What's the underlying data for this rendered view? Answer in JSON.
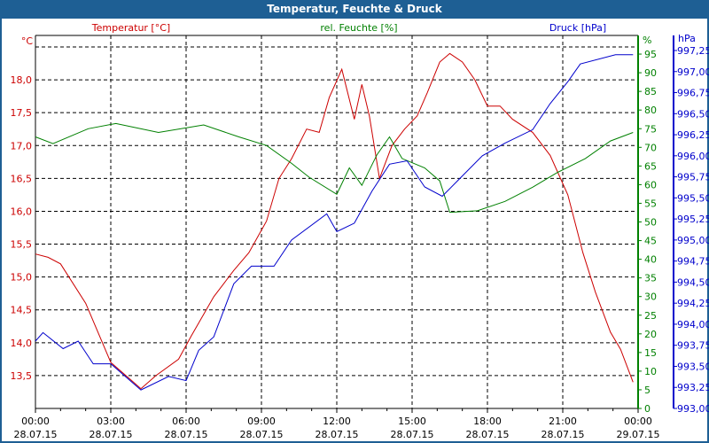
{
  "title": "Temperatur, Feuchte & Druck",
  "chart_data": {
    "type": "line",
    "title": "Temperatur, Feuchte & Druck",
    "x_ticks": [
      {
        "h": 0,
        "time": "00:00",
        "date": "28.07.15"
      },
      {
        "h": 3,
        "time": "03:00",
        "date": "28.07.15"
      },
      {
        "h": 6,
        "time": "06:00",
        "date": "28.07.15"
      },
      {
        "h": 9,
        "time": "09:00",
        "date": "28.07.15"
      },
      {
        "h": 12,
        "time": "12:00",
        "date": "28.07.15"
      },
      {
        "h": 15,
        "time": "15:00",
        "date": "28.07.15"
      },
      {
        "h": 18,
        "time": "18:00",
        "date": "28.07.15"
      },
      {
        "h": 21,
        "time": "21:00",
        "date": "28.07.15"
      },
      {
        "h": 24,
        "time": "00:00",
        "date": "29.07.15"
      }
    ],
    "xlim": [
      0,
      24
    ],
    "axes": {
      "temp": {
        "label": "Temperatur [°C]",
        "unit": "°C",
        "color": "#cc0000",
        "ylim": [
          13.0,
          18.675
        ],
        "ticks": [
          "13,5",
          "14,0",
          "14,5",
          "15,0",
          "15,5",
          "16,0",
          "16,5",
          "17,0",
          "17,5",
          "18,0"
        ],
        "tick_values": [
          13.5,
          14,
          14.5,
          15,
          15.5,
          16,
          16.5,
          17,
          17.5,
          18
        ],
        "grid": [
          13.5,
          14,
          14.5,
          15,
          15.5,
          16,
          16.5,
          17,
          17.5,
          18,
          18.5
        ]
      },
      "hum": {
        "label": "rel. Feuchte [%]",
        "unit": "%",
        "color": "#008000",
        "ylim": [
          0,
          100
        ],
        "ticks": [
          "0",
          "5",
          "10",
          "15",
          "20",
          "25",
          "30",
          "35",
          "40",
          "45",
          "50",
          "55",
          "60",
          "65",
          "70",
          "75",
          "80",
          "85",
          "90",
          "95"
        ],
        "tick_values": [
          0,
          5,
          10,
          15,
          20,
          25,
          30,
          35,
          40,
          45,
          50,
          55,
          60,
          65,
          70,
          75,
          80,
          85,
          90,
          95
        ]
      },
      "press": {
        "label": "Druck [hPa]",
        "unit": "hPa",
        "color": "#0000cc",
        "ylim": [
          993.0,
          997.25
        ],
        "ticks": [
          "993,00",
          "993,25",
          "993,50",
          "993,75",
          "994,00",
          "994,25",
          "994,50",
          "994,75",
          "995,00",
          "995,25",
          "995,50",
          "995,75",
          "996,00",
          "996,25",
          "996,50",
          "996,75",
          "997,00",
          "997,25"
        ],
        "tick_values": [
          993,
          993.25,
          993.5,
          993.75,
          994,
          994.25,
          994.5,
          994.75,
          995,
          995.25,
          995.5,
          995.75,
          996,
          996.25,
          996.5,
          996.75,
          997,
          997.25
        ]
      }
    },
    "series": [
      {
        "name": "Temperatur",
        "axis": "temp",
        "color": "#cc0000",
        "x": [
          0,
          0.5,
          1,
          2,
          3,
          3.9,
          4.2,
          4.8,
          5.7,
          6.2,
          7.1,
          7.9,
          8.5,
          9.2,
          9.7,
          10.2,
          10.8,
          11.3,
          11.7,
          12.2,
          12.7,
          13,
          13.3,
          13.7,
          14.2,
          14.7,
          15.2,
          15.6,
          16.1,
          16.5,
          17,
          17.5,
          18,
          18.5,
          19,
          19.8,
          20.5,
          21.2,
          21.8,
          22.3,
          22.9,
          23.3,
          23.8
        ],
        "values": [
          15.35,
          15.3,
          15.2,
          14.6,
          13.7,
          13.4,
          13.3,
          13.5,
          13.75,
          14.1,
          14.7,
          15.1,
          15.37,
          15.85,
          16.5,
          16.8,
          17.25,
          17.2,
          17.73,
          18.16,
          17.4,
          17.93,
          17.45,
          16.5,
          17.0,
          17.25,
          17.45,
          17.8,
          18.27,
          18.4,
          18.27,
          18.0,
          17.6,
          17.6,
          17.4,
          17.2,
          16.85,
          16.25,
          15.37,
          14.77,
          14.16,
          13.9,
          13.4
        ]
      },
      {
        "name": "rel. Feuchte",
        "axis": "hum",
        "color": "#008000",
        "x": [
          0,
          0.7,
          2.1,
          3.2,
          4.9,
          6.7,
          8.1,
          9.2,
          10.2,
          10.9,
          12,
          12.5,
          13,
          13.6,
          14.1,
          14.6,
          15.5,
          16.1,
          16.5,
          17.6,
          18.7,
          19.8,
          20.8,
          21.9,
          22.9,
          23.8
        ],
        "values": [
          72.8,
          71,
          75,
          76.4,
          74,
          76,
          72.8,
          70.5,
          65.7,
          62,
          57.4,
          64.5,
          59.8,
          68,
          72.8,
          67,
          64.5,
          61,
          52.6,
          53,
          55.5,
          59.3,
          63.3,
          67,
          71.7,
          74
        ]
      },
      {
        "name": "Druck",
        "axis": "press",
        "color": "#0000cc",
        "x": [
          0,
          0.3,
          1.1,
          1.7,
          2.3,
          3,
          4.2,
          5.3,
          6,
          6.5,
          7.1,
          7.9,
          8.6,
          9.5,
          10.2,
          11.6,
          12,
          12.7,
          13.4,
          14.1,
          14.8,
          15.5,
          16.2,
          16.9,
          17.8,
          18.7,
          19.8,
          20.5,
          21.2,
          21.7,
          23.1,
          23.8
        ],
        "values": [
          993.8,
          993.9,
          993.71,
          993.8,
          993.53,
          993.53,
          993.22,
          993.38,
          993.33,
          993.69,
          993.85,
          994.48,
          994.69,
          994.69,
          995.0,
          995.31,
          995.1,
          995.2,
          995.58,
          995.9,
          995.94,
          995.63,
          995.52,
          995.73,
          996.0,
          996.15,
          996.31,
          996.62,
          996.88,
          997.09,
          997.2,
          997.2
        ]
      }
    ]
  }
}
